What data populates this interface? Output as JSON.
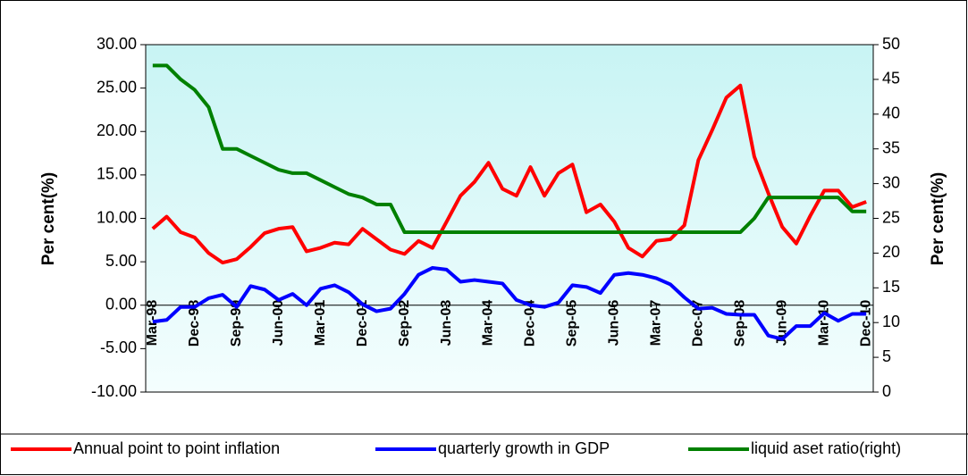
{
  "chart_data": {
    "type": "line",
    "y_label": "Per cent(%)",
    "y2_label": "Per cent(%)",
    "categories": [
      "Mar-98",
      null,
      null,
      "Dec-98",
      null,
      null,
      "Sep-99",
      null,
      null,
      "Jun-00",
      null,
      null,
      "Mar-01",
      null,
      null,
      "Dec-01",
      null,
      null,
      "Sep-02",
      null,
      null,
      "Jun-03",
      null,
      null,
      "Mar-04",
      null,
      null,
      "Dec-04",
      null,
      null,
      "Sep-05",
      null,
      null,
      "Jun-06",
      null,
      null,
      "Mar-07",
      null,
      null,
      "Dec-07",
      null,
      null,
      "Sep-08",
      null,
      null,
      "Jun-09",
      null,
      null,
      "Mar-10",
      null,
      null,
      "Dec-10"
    ],
    "series": [
      {
        "name": "Annual point to point inflation",
        "color": "#ff0000",
        "values": [
          8.8,
          10.2,
          8.4,
          7.8,
          6.0,
          4.9,
          5.3,
          6.7,
          8.3,
          8.8,
          9.0,
          6.2,
          6.6,
          7.2,
          7.0,
          8.8,
          7.6,
          6.4,
          5.9,
          7.4,
          6.6,
          9.6,
          12.6,
          14.2,
          16.4,
          13.4,
          12.6,
          15.9,
          12.6,
          15.2,
          16.2,
          10.7,
          11.6,
          9.6,
          6.6,
          5.6,
          7.4,
          7.6,
          9.2,
          16.7,
          20.2,
          23.9,
          25.3,
          17.1,
          12.9,
          9.0,
          7.1,
          10.3,
          13.2,
          13.2,
          11.3,
          11.9
        ]
      },
      {
        "name": "quarterly growth in GDP",
        "color": "#0000ff",
        "values": [
          -1.9,
          -1.7,
          -0.2,
          -0.2,
          0.8,
          1.2,
          -0.2,
          2.2,
          1.8,
          0.6,
          1.3,
          0.0,
          1.9,
          2.3,
          1.5,
          0.1,
          -0.7,
          -0.4,
          1.3,
          3.5,
          4.3,
          4.1,
          2.7,
          2.9,
          2.7,
          2.5,
          0.6,
          0.0,
          -0.2,
          0.3,
          2.3,
          2.1,
          1.4,
          3.5,
          3.7,
          3.5,
          3.1,
          2.4,
          0.9,
          -0.4,
          -0.3,
          -1.0,
          -1.1,
          -1.1,
          -3.5,
          -3.9,
          -2.4,
          -2.4,
          -0.9,
          -1.8,
          -1.0,
          -1.0
        ]
      },
      {
        "name": "liquid aset ratio(right)",
        "color": "#008000",
        "axis": "y2",
        "values": [
          47,
          47,
          45,
          43.5,
          41,
          35,
          35,
          34,
          33,
          32,
          31.5,
          31.5,
          30.5,
          29.5,
          28.5,
          28,
          27,
          27,
          23,
          23,
          23,
          23,
          23,
          23,
          23,
          23,
          23,
          23,
          23,
          23,
          23,
          23,
          23,
          23,
          23,
          23,
          23,
          23,
          23,
          23,
          23,
          23,
          23,
          25,
          28,
          28,
          28,
          28,
          28,
          28,
          26,
          26
        ]
      }
    ],
    "ylim": [
      -10,
      30
    ],
    "yticks": [
      {
        "value": -10,
        "label": "-10.00"
      },
      {
        "value": -5,
        "label": "-5.00"
      },
      {
        "value": 0,
        "label": "0.00"
      },
      {
        "value": 5,
        "label": "5.00"
      },
      {
        "value": 10,
        "label": "10.00"
      },
      {
        "value": 15,
        "label": "15.00"
      },
      {
        "value": 20,
        "label": "20.00"
      },
      {
        "value": 25,
        "label": "25.00"
      },
      {
        "value": 30,
        "label": "30.00"
      }
    ],
    "y2lim": [
      0,
      50
    ],
    "y2ticks": [
      0,
      5,
      10,
      15,
      20,
      25,
      30,
      35,
      40,
      45,
      50
    ],
    "grid": false
  }
}
